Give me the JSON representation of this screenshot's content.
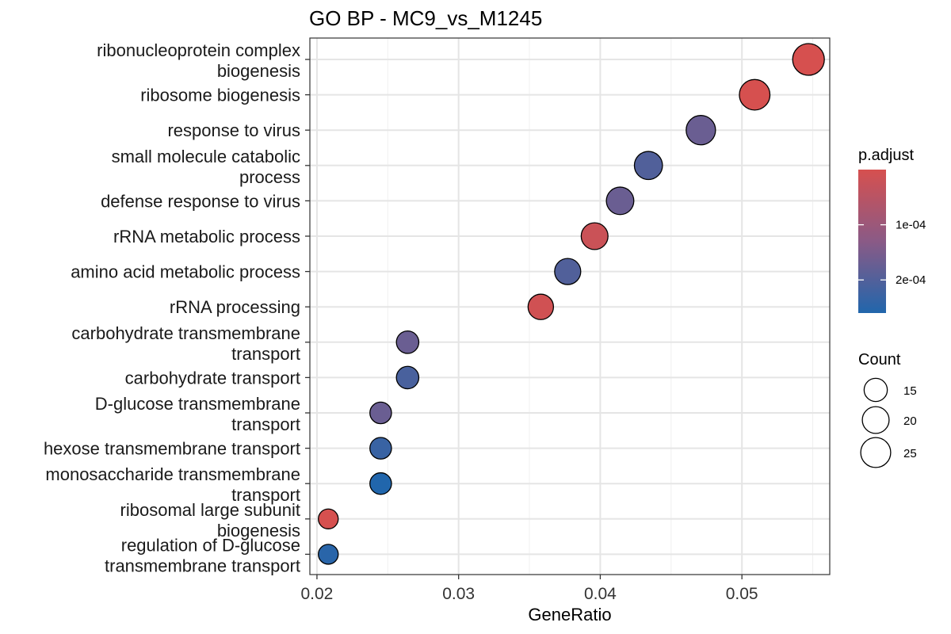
{
  "chart_data": {
    "type": "scatter",
    "title": "GO BP - MC9_vs_M1245",
    "xlabel": "GeneRatio",
    "ylabel": "",
    "xlim": [
      0.0195,
      0.0562
    ],
    "xticks": [
      "0.02",
      "0.03",
      "0.04",
      "0.05"
    ],
    "xtick_values": [
      0.02,
      0.03,
      0.04,
      0.05
    ],
    "grid": true,
    "legend_position": "right",
    "colors": {
      "low": "#2166ac",
      "high": "#d6504f",
      "panel_border": "#333333",
      "grid": "#e5e5e5"
    },
    "points": [
      {
        "term": "ribonucleoprotein complex biogenesis",
        "label_lines": [
          "ribonucleoprotein complex",
          "biogenesis"
        ],
        "gene_ratio": 0.0547,
        "count": 28,
        "p_adjust": 0.0
      },
      {
        "term": "ribosome biogenesis",
        "label_lines": [
          "ribosome biogenesis"
        ],
        "gene_ratio": 0.0509,
        "count": 26,
        "p_adjust": 0.0
      },
      {
        "term": "response to virus",
        "label_lines": [
          "response to virus"
        ],
        "gene_ratio": 0.0471,
        "count": 24,
        "p_adjust": 0.00017
      },
      {
        "term": "small molecule catabolic process",
        "label_lines": [
          "small molecule catabolic",
          "process"
        ],
        "gene_ratio": 0.0434,
        "count": 22,
        "p_adjust": 0.0002
      },
      {
        "term": "defense response to virus",
        "label_lines": [
          "defense response to virus"
        ],
        "gene_ratio": 0.0414,
        "count": 21,
        "p_adjust": 0.00017
      },
      {
        "term": "rRNA metabolic process",
        "label_lines": [
          "rRNA metabolic process"
        ],
        "gene_ratio": 0.0396,
        "count": 20,
        "p_adjust": 2e-05
      },
      {
        "term": "amino acid metabolic process",
        "label_lines": [
          "amino acid metabolic process"
        ],
        "gene_ratio": 0.0377,
        "count": 19,
        "p_adjust": 0.0002
      },
      {
        "term": "rRNA processing",
        "label_lines": [
          "rRNA processing"
        ],
        "gene_ratio": 0.0358,
        "count": 18,
        "p_adjust": 1e-05
      },
      {
        "term": "carbohydrate transmembrane transport",
        "label_lines": [
          "carbohydrate transmembrane",
          "transport"
        ],
        "gene_ratio": 0.0264,
        "count": 14,
        "p_adjust": 0.00017
      },
      {
        "term": "carbohydrate transport",
        "label_lines": [
          "carbohydrate transport"
        ],
        "gene_ratio": 0.0264,
        "count": 14,
        "p_adjust": 0.00021
      },
      {
        "term": "D-glucose transmembrane transport",
        "label_lines": [
          "D-glucose transmembrane",
          "transport"
        ],
        "gene_ratio": 0.0245,
        "count": 13,
        "p_adjust": 0.00017
      },
      {
        "term": "hexose transmembrane transport",
        "label_lines": [
          "hexose transmembrane transport"
        ],
        "gene_ratio": 0.0245,
        "count": 13,
        "p_adjust": 0.00023
      },
      {
        "term": "monosaccharide transmembrane transport",
        "label_lines": [
          "monosaccharide transmembrane",
          "transport"
        ],
        "gene_ratio": 0.0245,
        "count": 13,
        "p_adjust": 0.00026
      },
      {
        "term": "ribosomal large subunit biogenesis",
        "label_lines": [
          "ribosomal large subunit",
          "biogenesis"
        ],
        "gene_ratio": 0.0208,
        "count": 11,
        "p_adjust": 0.0
      },
      {
        "term": "regulation of D-glucose transmembrane transport",
        "label_lines": [
          "regulation of D-glucose",
          "transmembrane transport"
        ],
        "gene_ratio": 0.0208,
        "count": 11,
        "p_adjust": 0.00025
      }
    ],
    "color_legend": {
      "title": "p.adjust",
      "range": [
        0.0,
        0.00026
      ],
      "ticks": [
        {
          "value": 0.0001,
          "label": "1e-04"
        },
        {
          "value": 0.0002,
          "label": "2e-04"
        }
      ]
    },
    "size_legend": {
      "title": "Count",
      "entries": [
        {
          "value": 15,
          "label": "15"
        },
        {
          "value": 20,
          "label": "20"
        },
        {
          "value": 25,
          "label": "25"
        }
      ]
    }
  }
}
